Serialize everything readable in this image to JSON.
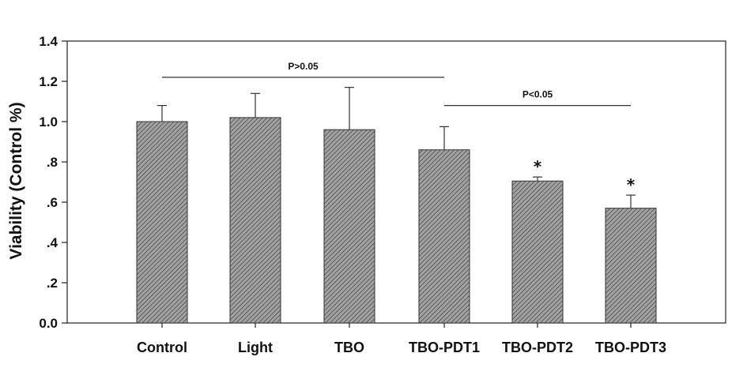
{
  "chart_data": {
    "type": "bar",
    "title": "",
    "xlabel": "",
    "ylabel": "Viability (Control %)",
    "ylim": [
      0,
      1.4
    ],
    "yticks": [
      0,
      0.2,
      0.4,
      0.6,
      0.8,
      1.0,
      1.2,
      1.4
    ],
    "ytick_labels": [
      "0.0",
      ".2",
      ".4",
      ".6",
      ".8",
      "1.0",
      "1.2",
      "1.4"
    ],
    "grid": false,
    "categories": [
      "Control",
      "Light",
      "TBO",
      "TBO-PDT1",
      "TBO-PDT2",
      "TBO-PDT3"
    ],
    "values": [
      1.0,
      1.02,
      0.96,
      0.86,
      0.705,
      0.57
    ],
    "error_upper": [
      0.08,
      0.12,
      0.21,
      0.115,
      0.02,
      0.065
    ],
    "significance_markers": [
      "",
      "",
      "",
      "",
      "*",
      "*"
    ],
    "annotations": [
      {
        "text": "P>0.05",
        "from": "Control",
        "to": "TBO-PDT1",
        "y": 1.22
      },
      {
        "text": "P<0.05",
        "from": "TBO-PDT1",
        "to": "TBO-PDT3",
        "y": 1.08
      }
    ],
    "bar_fill": "#9a9a9a",
    "bar_hatch": "#3c3c3c",
    "axis_color": "#222222"
  }
}
